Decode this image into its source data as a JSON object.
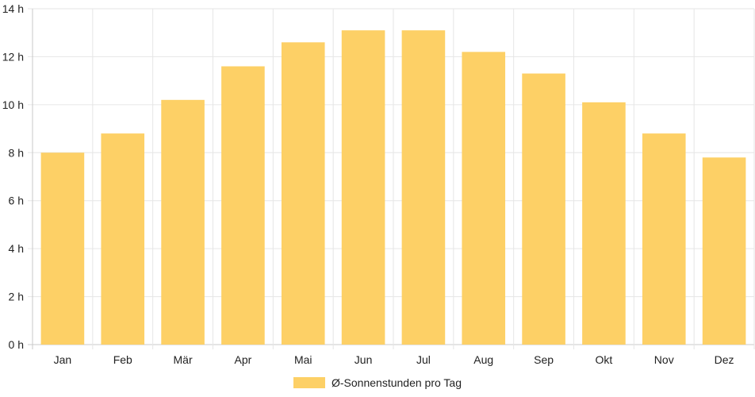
{
  "chart_data": {
    "type": "bar",
    "categories": [
      "Jan",
      "Feb",
      "Mär",
      "Apr",
      "Mai",
      "Jun",
      "Jul",
      "Aug",
      "Sep",
      "Okt",
      "Nov",
      "Dez"
    ],
    "series": [
      {
        "name": "Ø-Sonnenstunden pro Tag",
        "values": [
          8.0,
          8.8,
          10.2,
          11.6,
          12.6,
          13.1,
          13.1,
          12.2,
          11.3,
          10.1,
          8.8,
          7.8
        ],
        "color": "#fdd066"
      }
    ],
    "y_ticks": [
      "0 h",
      "2 h",
      "4 h",
      "6 h",
      "8 h",
      "10 h",
      "12 h",
      "14 h"
    ],
    "ylim": [
      0,
      14
    ],
    "grid": true,
    "legend_position": "bottom"
  }
}
